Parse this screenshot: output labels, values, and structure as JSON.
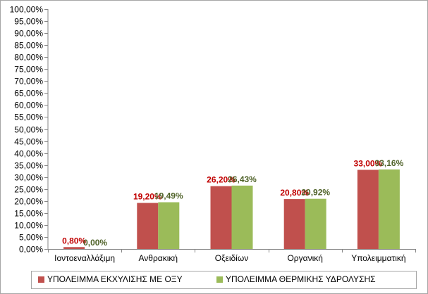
{
  "chart_data": {
    "type": "bar",
    "title": "",
    "xlabel": "",
    "ylabel": "",
    "ylim": [
      0,
      100
    ],
    "ytick_step": 5,
    "ytick_format": "percent-comma-2dp",
    "grid": false,
    "legend_position": "bottom",
    "categories": [
      "Ιοντοεναλλάξιμη",
      "Ανθρακική",
      "Οξειδίων",
      "Οργανική",
      "Υπολειμματική"
    ],
    "series": [
      {
        "name": "ΥΠΟΛΕΙΜΜΑ ΕΚΧΥΛΙΣΗΣ ΜΕ ΟΞΥ",
        "color": "#c0504d",
        "label_color": "#c00000",
        "values": [
          0.8,
          19.2,
          26.2,
          20.8,
          33.0
        ],
        "labels": [
          "0,80%",
          "19,20%",
          "26,20%",
          "20,80%",
          "33,00%"
        ]
      },
      {
        "name": "ΥΠΟΛΕΙΜΜΑ ΘΕΡΜΙΚΗΣ ΥΔΡΟΛΥΣΗΣ",
        "color": "#9bbb59",
        "label_color": "#4f6228",
        "values": [
          0.0,
          19.49,
          26.43,
          20.92,
          33.16
        ],
        "labels": [
          "0,00%",
          "19,49%",
          "26,43%",
          "20,92%",
          "33,16%"
        ]
      }
    ]
  }
}
